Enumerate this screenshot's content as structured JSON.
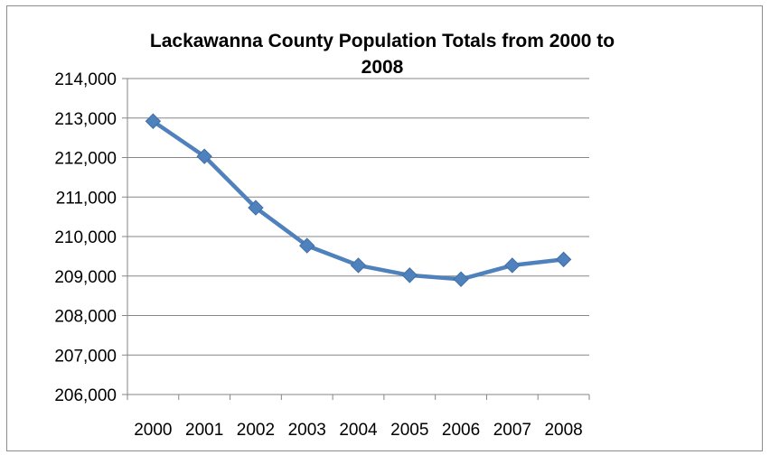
{
  "chart_data": {
    "type": "line",
    "title_lines": [
      "Lackawanna County Population Totals from 2000 to",
      "2008"
    ],
    "categories": [
      "2000",
      "2001",
      "2002",
      "2003",
      "2004",
      "2005",
      "2006",
      "2007",
      "2008"
    ],
    "series": [
      {
        "values": [
          212920,
          212030,
          210730,
          209770,
          209270,
          209020,
          208920,
          209270,
          209420
        ]
      }
    ],
    "ylim": [
      206000,
      214000
    ],
    "yticks": [
      206000,
      207000,
      208000,
      209000,
      210000,
      211000,
      212000,
      213000,
      214000
    ],
    "ytick_labels": [
      "206,000",
      "207,000",
      "208,000",
      "209,000",
      "210,000",
      "211,000",
      "212,000",
      "213,000",
      "214,000"
    ],
    "grid": true,
    "legend": "none",
    "colors": {
      "line": "#4f81bd",
      "marker": "#4f81bd",
      "grid": "#868686",
      "axis": "#868686"
    }
  }
}
